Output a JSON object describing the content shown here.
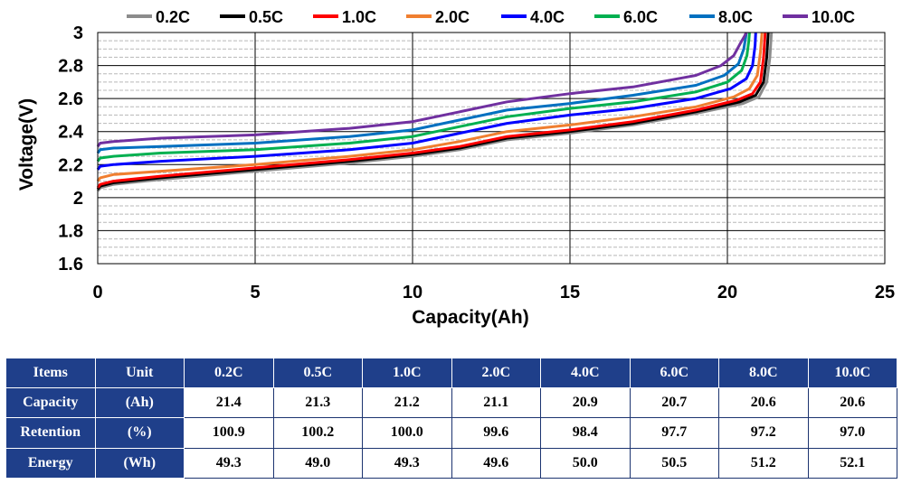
{
  "chart_data": {
    "type": "line",
    "xlabel": "Capacity(Ah)",
    "ylabel": "Voltage(V)",
    "xlim": [
      0,
      25
    ],
    "ylim": [
      1.6,
      3.0
    ],
    "xticks": [
      "0",
      "5",
      "10",
      "15",
      "20",
      "25"
    ],
    "yticks": [
      "1.6",
      "1.8",
      "2",
      "2.2",
      "2.4",
      "2.6",
      "2.8",
      "3"
    ],
    "grid": true,
    "legend_position": "top",
    "series": [
      {
        "name": "0.2C",
        "color": "#8c8c8c",
        "points": [
          [
            0,
            2.04
          ],
          [
            0.08,
            2.06
          ],
          [
            0.5,
            2.08
          ],
          [
            2,
            2.11
          ],
          [
            5,
            2.16
          ],
          [
            8,
            2.21
          ],
          [
            10,
            2.25
          ],
          [
            11.5,
            2.29
          ],
          [
            13,
            2.35
          ],
          [
            15,
            2.39
          ],
          [
            17,
            2.44
          ],
          [
            19,
            2.51
          ],
          [
            20.5,
            2.57
          ],
          [
            21,
            2.61
          ],
          [
            21.25,
            2.7
          ],
          [
            21.35,
            2.85
          ],
          [
            21.4,
            3.0
          ]
        ]
      },
      {
        "name": "0.5C",
        "color": "#000000",
        "points": [
          [
            0,
            2.05
          ],
          [
            0.08,
            2.07
          ],
          [
            0.5,
            2.09
          ],
          [
            2,
            2.12
          ],
          [
            5,
            2.17
          ],
          [
            8,
            2.22
          ],
          [
            10,
            2.26
          ],
          [
            11.5,
            2.3
          ],
          [
            13,
            2.36
          ],
          [
            15,
            2.4
          ],
          [
            17,
            2.45
          ],
          [
            19,
            2.52
          ],
          [
            20.4,
            2.58
          ],
          [
            20.9,
            2.62
          ],
          [
            21.15,
            2.7
          ],
          [
            21.25,
            2.85
          ],
          [
            21.3,
            3.0
          ]
        ]
      },
      {
        "name": "1.0C",
        "color": "#ff0000",
        "points": [
          [
            0,
            2.06
          ],
          [
            0.08,
            2.08
          ],
          [
            0.5,
            2.1
          ],
          [
            2,
            2.13
          ],
          [
            5,
            2.18
          ],
          [
            8,
            2.23
          ],
          [
            10,
            2.27
          ],
          [
            11.5,
            2.31
          ],
          [
            13,
            2.37
          ],
          [
            15,
            2.41
          ],
          [
            17,
            2.46
          ],
          [
            19,
            2.53
          ],
          [
            20.3,
            2.59
          ],
          [
            20.8,
            2.63
          ],
          [
            21.05,
            2.7
          ],
          [
            21.15,
            2.85
          ],
          [
            21.2,
            3.0
          ]
        ]
      },
      {
        "name": "2.0C",
        "color": "#f07f30",
        "points": [
          [
            0,
            2.1
          ],
          [
            0.08,
            2.12
          ],
          [
            0.5,
            2.14
          ],
          [
            2,
            2.16
          ],
          [
            5,
            2.2
          ],
          [
            8,
            2.25
          ],
          [
            10,
            2.29
          ],
          [
            11.5,
            2.34
          ],
          [
            13,
            2.4
          ],
          [
            15,
            2.44
          ],
          [
            17,
            2.49
          ],
          [
            19,
            2.55
          ],
          [
            20.2,
            2.61
          ],
          [
            20.7,
            2.66
          ],
          [
            20.95,
            2.74
          ],
          [
            21.05,
            2.88
          ],
          [
            21.1,
            3.0
          ]
        ]
      },
      {
        "name": "4.0C",
        "color": "#0000ff",
        "points": [
          [
            0,
            2.17
          ],
          [
            0.08,
            2.19
          ],
          [
            0.5,
            2.2
          ],
          [
            2,
            2.22
          ],
          [
            5,
            2.25
          ],
          [
            8,
            2.29
          ],
          [
            10,
            2.33
          ],
          [
            11.5,
            2.39
          ],
          [
            13,
            2.45
          ],
          [
            15,
            2.5
          ],
          [
            17,
            2.54
          ],
          [
            19,
            2.6
          ],
          [
            20.1,
            2.66
          ],
          [
            20.6,
            2.72
          ],
          [
            20.8,
            2.8
          ],
          [
            20.88,
            2.92
          ],
          [
            20.9,
            3.0
          ]
        ]
      },
      {
        "name": "6.0C",
        "color": "#00b050",
        "points": [
          [
            0,
            2.22
          ],
          [
            0.08,
            2.24
          ],
          [
            0.5,
            2.25
          ],
          [
            2,
            2.27
          ],
          [
            5,
            2.29
          ],
          [
            8,
            2.33
          ],
          [
            10,
            2.37
          ],
          [
            11.5,
            2.43
          ],
          [
            13,
            2.49
          ],
          [
            15,
            2.54
          ],
          [
            17,
            2.58
          ],
          [
            19,
            2.64
          ],
          [
            20,
            2.7
          ],
          [
            20.45,
            2.77
          ],
          [
            20.62,
            2.86
          ],
          [
            20.68,
            2.95
          ],
          [
            20.7,
            3.0
          ]
        ]
      },
      {
        "name": "8.0C",
        "color": "#0070c0",
        "points": [
          [
            0,
            2.27
          ],
          [
            0.08,
            2.29
          ],
          [
            0.5,
            2.3
          ],
          [
            2,
            2.31
          ],
          [
            5,
            2.33
          ],
          [
            8,
            2.37
          ],
          [
            10,
            2.41
          ],
          [
            11.5,
            2.47
          ],
          [
            13,
            2.53
          ],
          [
            15,
            2.57
          ],
          [
            17,
            2.62
          ],
          [
            19,
            2.68
          ],
          [
            19.9,
            2.74
          ],
          [
            20.35,
            2.81
          ],
          [
            20.52,
            2.9
          ],
          [
            20.58,
            2.97
          ],
          [
            20.6,
            3.0
          ]
        ]
      },
      {
        "name": "10.0C",
        "color": "#7030a0",
        "points": [
          [
            0,
            2.31
          ],
          [
            0.08,
            2.33
          ],
          [
            0.5,
            2.34
          ],
          [
            2,
            2.36
          ],
          [
            5,
            2.38
          ],
          [
            8,
            2.42
          ],
          [
            10,
            2.46
          ],
          [
            11.5,
            2.52
          ],
          [
            13,
            2.58
          ],
          [
            15,
            2.63
          ],
          [
            17,
            2.67
          ],
          [
            19,
            2.74
          ],
          [
            19.8,
            2.8
          ],
          [
            20.2,
            2.86
          ],
          [
            20.4,
            2.93
          ],
          [
            20.55,
            2.98
          ],
          [
            20.6,
            3.0
          ]
        ]
      }
    ]
  },
  "table": {
    "headers": [
      "Items",
      "Unit",
      "0.2C",
      "0.5C",
      "1.0C",
      "2.0C",
      "4.0C",
      "6.0C",
      "8.0C",
      "10.0C"
    ],
    "rows": [
      {
        "item": "Capacity",
        "unit": "(Ah)",
        "values": [
          "21.4",
          "21.3",
          "21.2",
          "21.1",
          "20.9",
          "20.7",
          "20.6",
          "20.6"
        ]
      },
      {
        "item": "Retention",
        "unit": "(%)",
        "values": [
          "100.9",
          "100.2",
          "100.0",
          "99.6",
          "98.4",
          "97.7",
          "97.2",
          "97.0"
        ]
      },
      {
        "item": "Energy",
        "unit": "(Wh)",
        "values": [
          "49.3",
          "49.0",
          "49.3",
          "49.6",
          "50.0",
          "50.5",
          "51.2",
          "52.1"
        ]
      }
    ]
  }
}
